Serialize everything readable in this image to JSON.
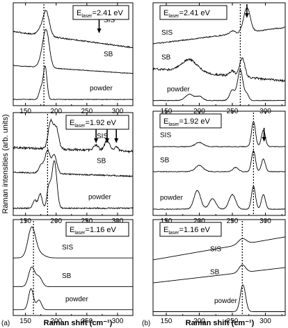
{
  "figure": {
    "ylabel": "Raman intensities (arb. units)",
    "xlabel_a": "Raman shift (cm⁻¹)",
    "xlabel_b": "Raman shift (cm⁻¹)",
    "panel_a_tag": "(a)",
    "panel_b_tag": "(b)"
  },
  "chart_data": [
    {
      "id": "a1",
      "type": "line",
      "xlim": [
        130,
        325
      ],
      "x_ticks": [
        150,
        200,
        250,
        300
      ],
      "laser": {
        "main": "E",
        "sub": "laser",
        "value": "=2.41 eV"
      },
      "dotted_x": 180,
      "arrows_x": [
        270
      ],
      "series": [
        {
          "name": "SIS",
          "base": 0.72,
          "slope": -0.0008,
          "noise": 0.012,
          "peaks": [
            [
              184,
              0.22,
              5
            ],
            [
              176,
              0.06,
              6
            ]
          ]
        },
        {
          "name": "SB",
          "base": 0.39,
          "slope": -0.0004,
          "noise": 0.006,
          "peaks": [
            [
              184,
              0.34,
              5
            ],
            [
              177,
              0.08,
              5
            ]
          ]
        },
        {
          "name": "powder",
          "base": 0.06,
          "slope": 0.0,
          "noise": 0.006,
          "peaks": [
            [
              182,
              0.32,
              3
            ],
            [
              175,
              0.1,
              3
            ]
          ]
        }
      ]
    },
    {
      "id": "a2",
      "type": "line",
      "xlim": [
        130,
        325
      ],
      "x_ticks": [
        150,
        200,
        250,
        300
      ],
      "laser": {
        "main": "E",
        "sub": "laser",
        "value": "=1.92 eV"
      },
      "dotted_x": 186,
      "arrows_x": [
        265,
        283,
        298
      ],
      "series": [
        {
          "name": "SIS",
          "base": 0.66,
          "slope": -0.0002,
          "noise": 0.022,
          "peaks": [
            [
              191,
              0.26,
              4
            ],
            [
              200,
              0.2,
              4
            ],
            [
              265,
              0.05,
              4
            ],
            [
              283,
              0.1,
              4
            ],
            [
              298,
              0.04,
              3
            ]
          ]
        },
        {
          "name": "SB",
          "base": 0.42,
          "slope": -0.0002,
          "noise": 0.012,
          "peaks": [
            [
              186,
              0.22,
              4
            ],
            [
              197,
              0.18,
              4
            ],
            [
              176,
              0.08,
              4
            ]
          ]
        },
        {
          "name": "powder",
          "base": 0.07,
          "slope": 0.0,
          "noise": 0.012,
          "peaks": [
            [
              197,
              0.46,
              4
            ],
            [
              188,
              0.2,
              3
            ],
            [
              174,
              0.14,
              3
            ],
            [
              165,
              0.08,
              3
            ]
          ]
        }
      ]
    },
    {
      "id": "a3",
      "type": "line",
      "xlim": [
        130,
        325
      ],
      "x_ticks": [
        150,
        200,
        250,
        300
      ],
      "laser": {
        "main": "E",
        "sub": "laser",
        "value": "=1.16 eV"
      },
      "dotted_x": 163,
      "arrows_x": [],
      "series": [
        {
          "name": "SIS",
          "base": 0.6,
          "slope": 0.0,
          "noise": 0.0,
          "peaks": [
            [
              160,
              0.28,
              6
            ],
            [
              168,
              0.06,
              10
            ]
          ]
        },
        {
          "name": "SB",
          "base": 0.3,
          "slope": 0.0,
          "noise": 0.0,
          "peaks": [
            [
              160,
              0.2,
              5
            ],
            [
              172,
              0.1,
              5
            ]
          ]
        },
        {
          "name": "powder",
          "base": 0.06,
          "slope": 0.0,
          "noise": 0.0,
          "peaks": [
            [
              159,
              0.22,
              4
            ],
            [
              172,
              0.1,
              4
            ]
          ]
        }
      ]
    },
    {
      "id": "b1",
      "type": "line",
      "xlim": [
        130,
        330
      ],
      "x_ticks": [
        150,
        200,
        250,
        300
      ],
      "laser": {
        "main": "E",
        "sub": "laser",
        "value": "=2.41 eV"
      },
      "dotted_x": 262,
      "arrows_x": [
        272
      ],
      "series": [
        {
          "name": "SIS",
          "base": 0.6,
          "slope": 0.0008,
          "noise": 0.01,
          "peaks": [
            [
              272,
              0.24,
              5
            ],
            [
              250,
              0.03,
              4
            ]
          ]
        },
        {
          "name": "SB",
          "base": 0.36,
          "slope": -0.0006,
          "noise": 0.02,
          "peaks": [
            [
              185,
              0.12,
              12
            ],
            [
              265,
              0.18,
              4
            ],
            [
              250,
              0.05,
              4
            ]
          ]
        },
        {
          "name": "powder",
          "base": 0.05,
          "slope": 0.0,
          "noise": 0.006,
          "peaks": [
            [
              185,
              0.06,
              6
            ],
            [
              200,
              0.04,
              5
            ],
            [
              250,
              0.1,
              4
            ],
            [
              262,
              0.3,
              4
            ],
            [
              272,
              0.06,
              3
            ]
          ]
        }
      ]
    },
    {
      "id": "b2",
      "type": "line",
      "xlim": [
        130,
        330
      ],
      "x_ticks": [
        150,
        200,
        250,
        300
      ],
      "laser": {
        "main": "E",
        "sub": "laser",
        "value": "=1.92 eV"
      },
      "dotted_x": 282,
      "arrows_x": [
        298
      ],
      "series": [
        {
          "name": "SIS",
          "base": 0.66,
          "slope": 0.0,
          "noise": 0.006,
          "peaks": [
            [
              200,
              0.04,
              6
            ],
            [
              282,
              0.24,
              3
            ],
            [
              297,
              0.16,
              3
            ]
          ]
        },
        {
          "name": "SB",
          "base": 0.42,
          "slope": 0.0,
          "noise": 0.006,
          "peaks": [
            [
              200,
              0.06,
              6
            ],
            [
              255,
              0.04,
              4
            ],
            [
              282,
              0.2,
              3
            ],
            [
              297,
              0.12,
              3
            ]
          ]
        },
        {
          "name": "powder",
          "base": 0.06,
          "slope": 0.0,
          "noise": 0.006,
          "peaks": [
            [
              197,
              0.18,
              5
            ],
            [
              220,
              0.1,
              5
            ],
            [
              250,
              0.14,
              5
            ],
            [
              282,
              0.22,
              3
            ],
            [
              297,
              0.14,
              3
            ]
          ]
        }
      ]
    },
    {
      "id": "b3",
      "type": "line",
      "xlim": [
        130,
        330
      ],
      "x_ticks": [
        150,
        200,
        250,
        300
      ],
      "laser": {
        "main": "E",
        "sub": "laser",
        "value": "=1.16 eV"
      },
      "dotted_x": 265,
      "arrows_x": [],
      "series": [
        {
          "name": "SIS",
          "base": 0.58,
          "slope": 0.0012,
          "noise": 0.0,
          "peaks": [
            [
              265,
              0.06,
              6
            ]
          ]
        },
        {
          "name": "SB",
          "base": 0.34,
          "slope": 0.0008,
          "noise": 0.0,
          "peaks": [
            [
              265,
              0.08,
              5
            ]
          ]
        },
        {
          "name": "powder",
          "base": 0.04,
          "slope": 0.0,
          "noise": 0.0,
          "peaks": [
            [
              266,
              0.28,
              4
            ]
          ]
        }
      ]
    }
  ]
}
